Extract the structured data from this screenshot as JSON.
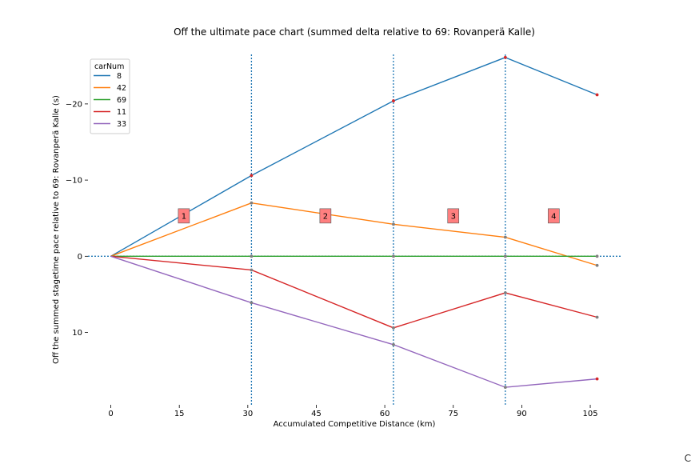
{
  "chart_data": {
    "type": "line",
    "title": "Off the ultimate pace chart (summed delta relative to 69: Rovanperä Kalle)",
    "xlabel": "Accumulated Competitive Distance (km)",
    "ylabel": "Off the summed stagetime pace relative to 69: Rovanperä Kalle (s)",
    "x_ticks": [
      0,
      15,
      30,
      45,
      60,
      75,
      90,
      105
    ],
    "y_ticks": [
      -20,
      -10,
      0,
      10
    ],
    "xlim": [
      -5,
      112
    ],
    "ylim_inverted": [
      -26.5,
      19.5
    ],
    "y_axis_inverted": true,
    "legend_title": "carNum",
    "legend_position": "top-left",
    "x": [
      0,
      30.8,
      61.9,
      86.4,
      106.5
    ],
    "stage_boundaries": [
      30.8,
      61.9,
      86.4
    ],
    "stage_labels": [
      {
        "label": "1",
        "x": 16,
        "y": -5.3
      },
      {
        "label": "2",
        "x": 47,
        "y": -5.3
      },
      {
        "label": "3",
        "x": 75,
        "y": -5.3
      },
      {
        "label": "4",
        "x": 97,
        "y": -5.3
      }
    ],
    "series": [
      {
        "name": "8",
        "color": "#1f77b4",
        "values": [
          0,
          -10.6,
          -20.4,
          -26.1,
          -21.2
        ]
      },
      {
        "name": "42",
        "color": "#ff7f0e",
        "values": [
          0,
          -7.0,
          -4.2,
          -2.5,
          1.2
        ]
      },
      {
        "name": "69",
        "color": "#2ca02c",
        "values": [
          0,
          0,
          0,
          0,
          0
        ]
      },
      {
        "name": "11",
        "color": "#d62728",
        "values": [
          0,
          1.8,
          9.4,
          4.8,
          8.0
        ]
      },
      {
        "name": "33",
        "color": "#9467bd",
        "values": [
          0,
          6.1,
          11.6,
          17.2,
          16.1
        ]
      }
    ],
    "colors": {
      "stage_line": "#1f77b4",
      "label_box_fill": "#ff7f7f",
      "marker_red": "#d62728",
      "marker_grey": "#7f7f7f"
    }
  },
  "corner_text": "C"
}
